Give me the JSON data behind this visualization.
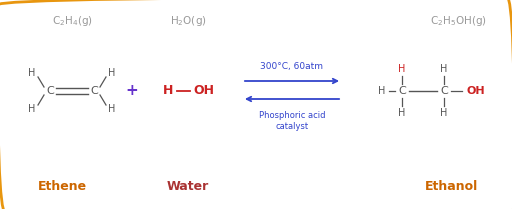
{
  "bg_color": "#ffffff",
  "border_color": "#e8960f",
  "formula_color": "#999999",
  "bond_color": "#555555",
  "red_color": "#cc2222",
  "blue_color": "#3344cc",
  "purple_color": "#6633cc",
  "orange_color": "#cc6600",
  "dark_red_color": "#aa3333",
  "label_ethene": "Ethene",
  "label_water": "Water",
  "label_ethanol": "Ethanol",
  "arrow_text_top": "300°C, 60atm",
  "arrow_text_bot": "Phosphoric acid\ncatalyst"
}
